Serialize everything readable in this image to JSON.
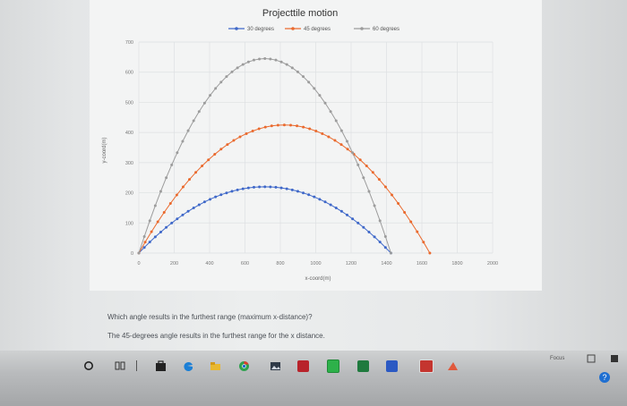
{
  "chart_data": {
    "type": "scatter",
    "title": "Projecttile motion",
    "xlabel": "x-coord(m)",
    "ylabel": "y-coord(m)",
    "xlim": [
      0,
      2000
    ],
    "ylim": [
      0,
      700
    ],
    "x_ticks": [
      "0",
      "200",
      "400",
      "600",
      "800",
      "1000",
      "1200",
      "1400",
      "1600",
      "1800",
      "2000"
    ],
    "y_ticks": [
      "0",
      "100",
      "200",
      "300",
      "400",
      "500",
      "600",
      "700"
    ],
    "grid": true,
    "legend_position": "top",
    "series": [
      {
        "name": "30 degrees",
        "color": "#3f68c9",
        "range": 1425,
        "max_height": 220
      },
      {
        "name": "45 degrees",
        "color": "#ea6a2e",
        "range": 1645,
        "max_height": 425
      },
      {
        "name": "60 degrees",
        "color": "#9c9c9c",
        "range": 1425,
        "max_height": 645
      }
    ]
  },
  "question": "Which angle results in the furthest range (maximum x-distance)?",
  "answer": "The 45-degrees angle results in the furthest range for the x distance.",
  "taskbar": {
    "focus_label": "Focus",
    "notification_count": "?",
    "icons": [
      "circle-icon",
      "task-view-icon",
      "separator-icon",
      "store-icon",
      "edge-icon",
      "file-explorer-icon",
      "chrome-icon",
      "photos-icon",
      "red-app-icon",
      "green-app-icon",
      "excel-icon",
      "word-icon",
      "app-window-icon",
      "arrow-app-icon"
    ]
  }
}
